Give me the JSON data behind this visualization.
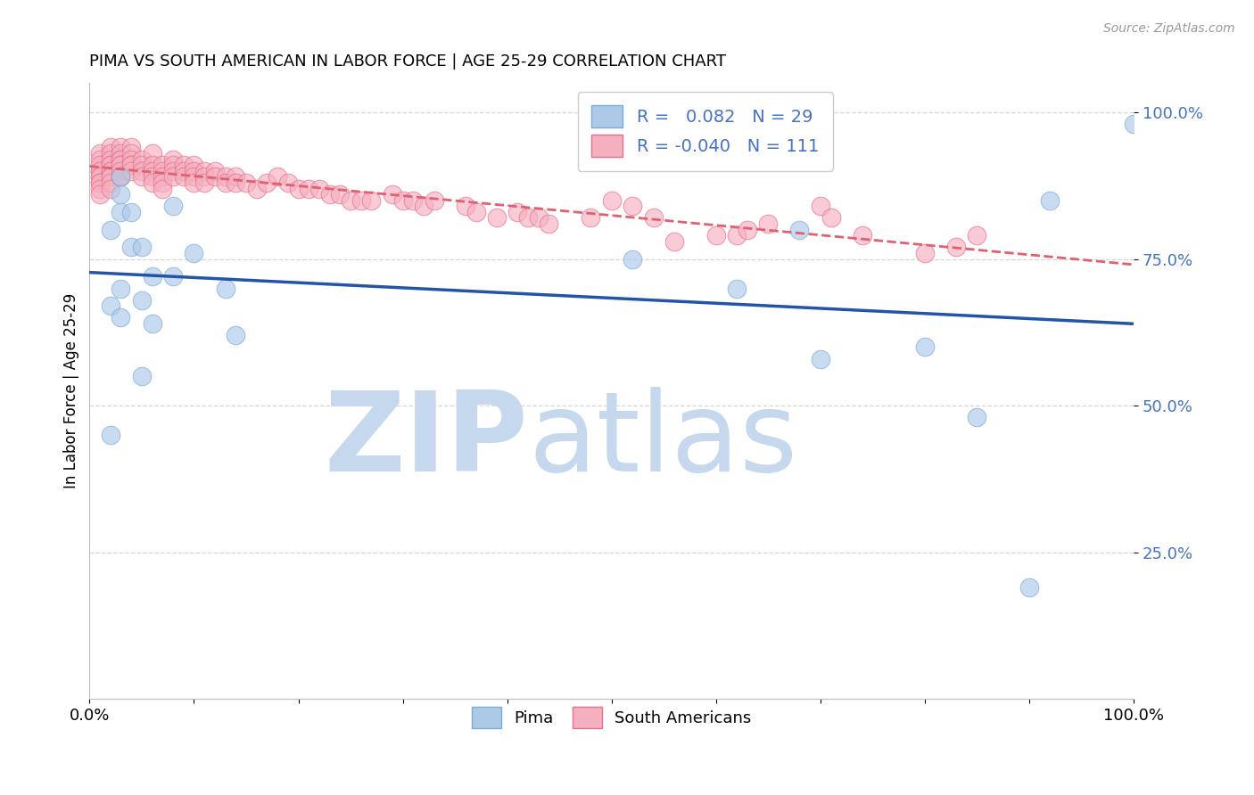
{
  "title": "PIMA VS SOUTH AMERICAN IN LABOR FORCE | AGE 25-29 CORRELATION CHART",
  "source_text": "Source: ZipAtlas.com",
  "ylabel": "In Labor Force | Age 25-29",
  "xlim": [
    0.0,
    1.0
  ],
  "ylim": [
    0.0,
    1.05
  ],
  "ytick_labels": [
    "100.0%",
    "75.0%",
    "50.0%",
    "25.0%"
  ],
  "ytick_values": [
    1.0,
    0.75,
    0.5,
    0.25
  ],
  "xtick_values": [
    0.0,
    0.1,
    0.2,
    0.3,
    0.4,
    0.5,
    0.6,
    0.7,
    0.8,
    0.9,
    1.0
  ],
  "pima_color": "#adc9e8",
  "pima_edge_color": "#7aacd6",
  "south_american_color": "#f5b0c0",
  "south_american_edge_color": "#e8708a",
  "pima_line_color": "#2255aa",
  "south_american_line_color": "#e06070",
  "legend_r_pima": "0.082",
  "legend_n_pima": "29",
  "legend_r_sa": "-0.040",
  "legend_n_sa": "111",
  "watermark_zip": "ZIP",
  "watermark_atlas": "atlas",
  "watermark_color": "#c5d8ee",
  "pima_x": [
    0.02,
    0.02,
    0.03,
    0.03,
    0.03,
    0.03,
    0.04,
    0.04,
    0.05,
    0.05,
    0.06,
    0.06,
    0.08,
    0.08,
    0.1,
    0.13,
    0.14,
    0.52,
    0.62,
    0.68,
    0.7,
    0.8,
    0.85,
    0.9,
    0.92,
    1.0,
    0.02,
    0.03,
    0.05
  ],
  "pima_y": [
    0.67,
    0.45,
    0.89,
    0.86,
    0.83,
    0.7,
    0.83,
    0.77,
    0.77,
    0.68,
    0.72,
    0.64,
    0.84,
    0.72,
    0.76,
    0.7,
    0.62,
    0.75,
    0.7,
    0.8,
    0.58,
    0.6,
    0.48,
    0.19,
    0.85,
    0.98,
    0.8,
    0.65,
    0.55
  ],
  "sa_x": [
    0.01,
    0.01,
    0.01,
    0.01,
    0.01,
    0.01,
    0.01,
    0.01,
    0.01,
    0.01,
    0.01,
    0.02,
    0.02,
    0.02,
    0.02,
    0.02,
    0.02,
    0.02,
    0.02,
    0.02,
    0.02,
    0.02,
    0.03,
    0.03,
    0.03,
    0.03,
    0.03,
    0.03,
    0.03,
    0.03,
    0.03,
    0.04,
    0.04,
    0.04,
    0.04,
    0.04,
    0.04,
    0.05,
    0.05,
    0.05,
    0.05,
    0.06,
    0.06,
    0.06,
    0.06,
    0.06,
    0.07,
    0.07,
    0.07,
    0.07,
    0.07,
    0.08,
    0.08,
    0.08,
    0.08,
    0.09,
    0.09,
    0.09,
    0.1,
    0.1,
    0.1,
    0.1,
    0.11,
    0.11,
    0.11,
    0.12,
    0.12,
    0.13,
    0.13,
    0.14,
    0.14,
    0.15,
    0.16,
    0.17,
    0.18,
    0.19,
    0.2,
    0.21,
    0.22,
    0.23,
    0.24,
    0.25,
    0.26,
    0.27,
    0.29,
    0.3,
    0.31,
    0.32,
    0.33,
    0.36,
    0.37,
    0.39,
    0.41,
    0.42,
    0.43,
    0.44,
    0.48,
    0.5,
    0.52,
    0.54,
    0.56,
    0.6,
    0.62,
    0.63,
    0.65,
    0.7,
    0.71,
    0.74,
    0.8,
    0.83,
    0.85
  ],
  "sa_y": [
    0.93,
    0.92,
    0.91,
    0.9,
    0.9,
    0.89,
    0.89,
    0.88,
    0.88,
    0.87,
    0.86,
    0.94,
    0.93,
    0.92,
    0.91,
    0.91,
    0.9,
    0.9,
    0.89,
    0.89,
    0.88,
    0.87,
    0.94,
    0.93,
    0.92,
    0.92,
    0.91,
    0.91,
    0.9,
    0.89,
    0.89,
    0.94,
    0.93,
    0.92,
    0.91,
    0.91,
    0.9,
    0.92,
    0.91,
    0.9,
    0.89,
    0.93,
    0.91,
    0.9,
    0.89,
    0.88,
    0.91,
    0.9,
    0.89,
    0.88,
    0.87,
    0.92,
    0.91,
    0.9,
    0.89,
    0.91,
    0.9,
    0.89,
    0.91,
    0.9,
    0.89,
    0.88,
    0.9,
    0.89,
    0.88,
    0.9,
    0.89,
    0.89,
    0.88,
    0.89,
    0.88,
    0.88,
    0.87,
    0.88,
    0.89,
    0.88,
    0.87,
    0.87,
    0.87,
    0.86,
    0.86,
    0.85,
    0.85,
    0.85,
    0.86,
    0.85,
    0.85,
    0.84,
    0.85,
    0.84,
    0.83,
    0.82,
    0.83,
    0.82,
    0.82,
    0.81,
    0.82,
    0.85,
    0.84,
    0.82,
    0.78,
    0.79,
    0.79,
    0.8,
    0.81,
    0.84,
    0.82,
    0.79,
    0.76,
    0.77,
    0.79
  ]
}
